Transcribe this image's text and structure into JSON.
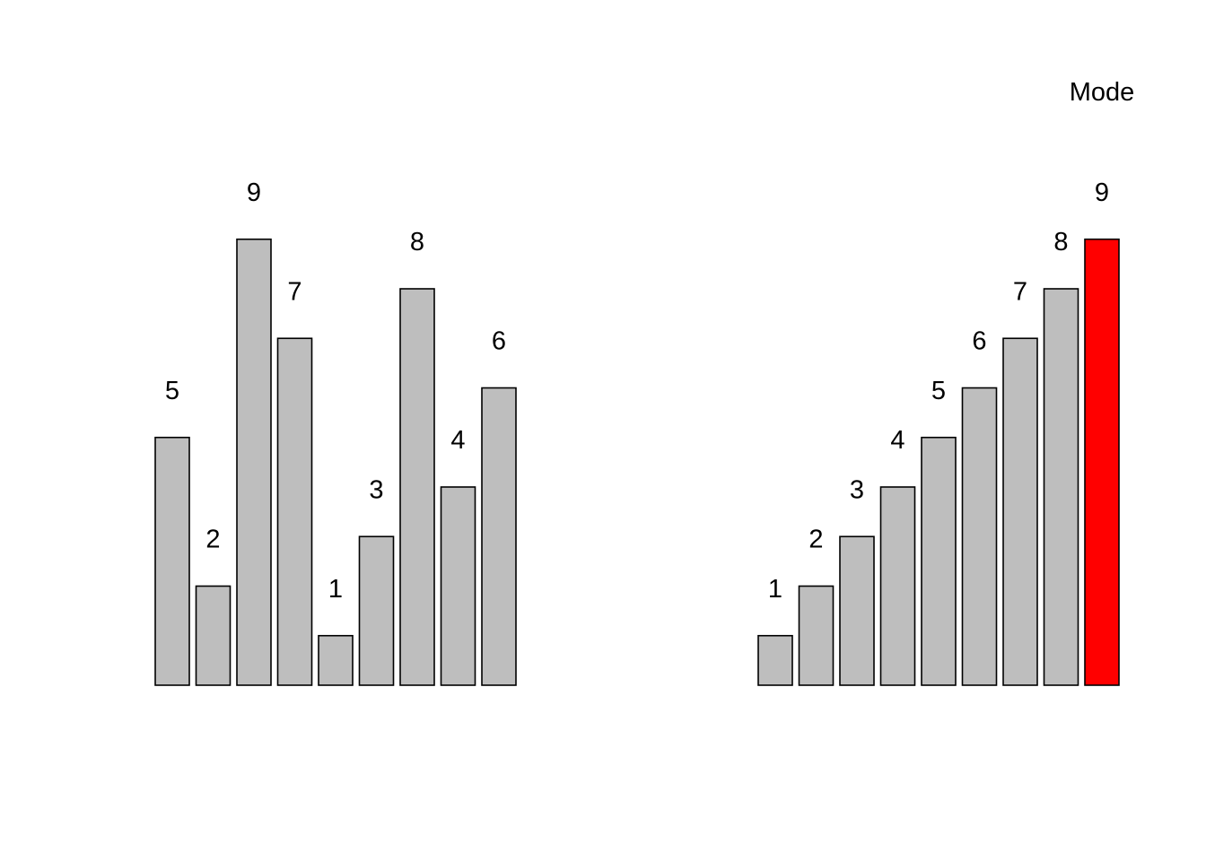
{
  "chart_data": [
    {
      "type": "bar",
      "values": [
        5,
        2,
        9,
        7,
        1,
        3,
        8,
        4,
        6
      ],
      "data_labels": [
        "5",
        "2",
        "9",
        "7",
        "1",
        "3",
        "8",
        "4",
        "6"
      ],
      "ylim": [
        0,
        9
      ],
      "grid": false,
      "axes": false,
      "bar_color": "#bebebe",
      "border_color": "#000000"
    },
    {
      "type": "bar",
      "values": [
        1,
        2,
        3,
        4,
        5,
        6,
        7,
        8,
        9
      ],
      "data_labels": [
        "1",
        "2",
        "3",
        "4",
        "5",
        "6",
        "7",
        "8",
        "9"
      ],
      "ylim": [
        0,
        9
      ],
      "grid": false,
      "axes": false,
      "bar_color": "#bebebe",
      "highlight_index": 8,
      "highlight_color": "#ff0000",
      "border_color": "#000000",
      "annotation": "Mode"
    }
  ]
}
